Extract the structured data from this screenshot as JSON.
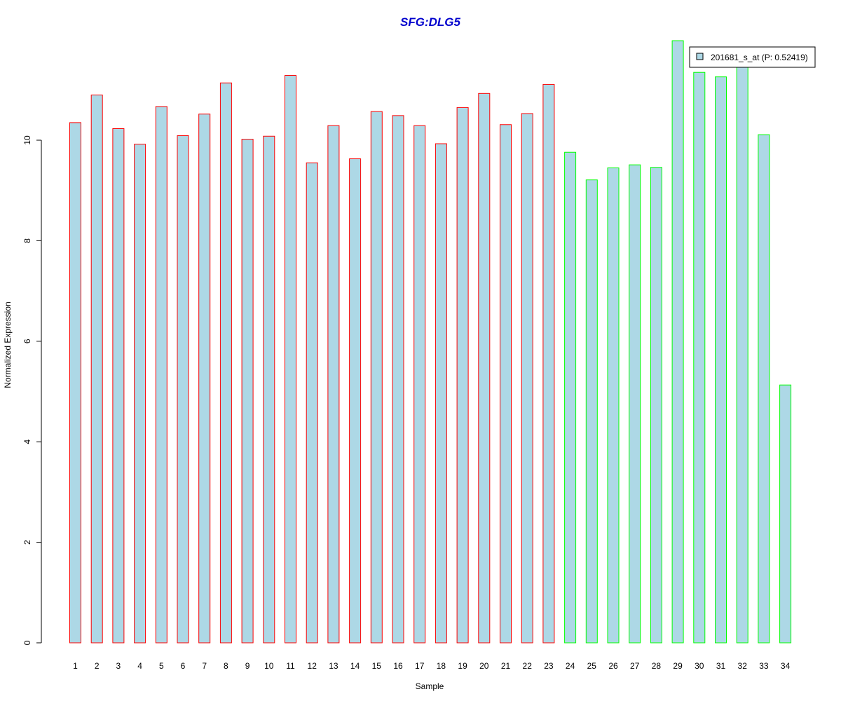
{
  "chart_data": {
    "type": "bar",
    "title": "SFG:DLG5",
    "xlabel": "Sample",
    "ylabel": "Normalized Expression",
    "ylim": [
      0,
      12
    ],
    "yticks": [
      0,
      2,
      4,
      6,
      8,
      10
    ],
    "grid": false,
    "legend_position": "top-right",
    "categories": [
      "1",
      "2",
      "3",
      "4",
      "5",
      "6",
      "7",
      "8",
      "9",
      "10",
      "11",
      "12",
      "13",
      "14",
      "15",
      "16",
      "17",
      "18",
      "19",
      "20",
      "21",
      "22",
      "23",
      "24",
      "25",
      "26",
      "27",
      "28",
      "29",
      "30",
      "31",
      "32",
      "33",
      "34"
    ],
    "series": [
      {
        "name": "201681_s_at (P: 0.52419)",
        "values": [
          10.35,
          10.9,
          10.23,
          9.92,
          10.67,
          10.09,
          10.52,
          11.14,
          10.02,
          10.08,
          11.29,
          9.55,
          10.29,
          9.63,
          10.57,
          10.49,
          10.29,
          9.93,
          10.65,
          10.93,
          10.31,
          10.53,
          11.11,
          9.76,
          9.21,
          9.45,
          9.51,
          9.46,
          11.98,
          11.35,
          11.26,
          11.55,
          10.11,
          5.13
        ],
        "groups": [
          "a",
          "a",
          "a",
          "a",
          "a",
          "a",
          "a",
          "a",
          "a",
          "a",
          "a",
          "a",
          "a",
          "a",
          "a",
          "a",
          "a",
          "a",
          "a",
          "a",
          "a",
          "a",
          "a",
          "b",
          "b",
          "b",
          "b",
          "b",
          "b",
          "b",
          "b",
          "b",
          "b",
          "b"
        ]
      }
    ],
    "colors": {
      "bar_fill": "#add8e6",
      "group_a_border": "#ff0000",
      "group_b_border": "#00ff00",
      "title": "#0000cd"
    }
  }
}
